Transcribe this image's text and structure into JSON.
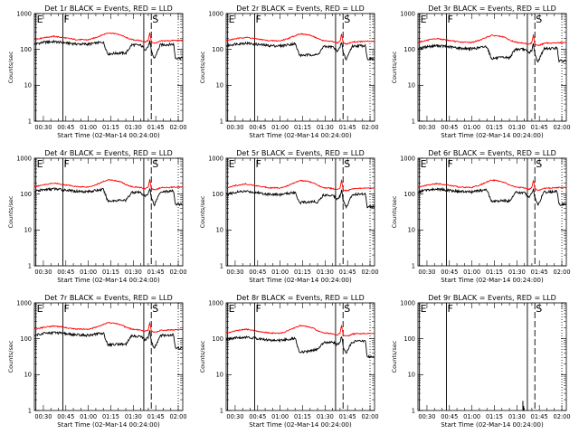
{
  "chart_data": {
    "type": "line",
    "layout": "3x3 grid of panels",
    "x_axis": {
      "label": "Start Time (02-Mar-14 00:24:00)",
      "range": [
        "00:24",
        "02:03"
      ],
      "tick_labels": [
        "00:30",
        "00:45",
        "01:00",
        "01:15",
        "01:30",
        "01:45",
        "02:00"
      ]
    },
    "y_axis": {
      "label": "Counts/sec",
      "scale": "log",
      "range": [
        1,
        1000
      ],
      "tick_labels": [
        "1",
        "10",
        "100",
        "1000"
      ]
    },
    "grid": false,
    "legend": "none",
    "colors": {
      "events": "#000000",
      "lld": "#ff0000"
    },
    "time_markers": [
      {
        "time": "00:25",
        "label": "E",
        "style": "solid"
      },
      {
        "time": "00:43",
        "label": "F",
        "style": "solid"
      },
      {
        "time": "01:37",
        "label": "",
        "style": "solid"
      },
      {
        "time": "01:42",
        "label": "S",
        "style": "dashed"
      },
      {
        "time": "02:00",
        "label": "",
        "style": "dotted"
      }
    ],
    "time_knots": [
      "00:24",
      "00:30",
      "00:37",
      "00:45",
      "00:52",
      "01:00",
      "01:05",
      "01:10",
      "01:13",
      "01:18",
      "01:22",
      "01:25",
      "01:29",
      "01:35",
      "01:38",
      "01:40",
      "01:41",
      "01:42",
      "01:44",
      "01:46",
      "01:48",
      "01:50",
      "01:55",
      "01:57",
      "01:58",
      "02:03"
    ],
    "panels": [
      {
        "title": "Det 1r BLACK = Events, RED = LLD",
        "series": [
          {
            "name": "Events",
            "values": [
              140,
              158,
              165,
              152,
              142,
              140,
              150,
              160,
              75,
              78,
              80,
              78,
              135,
              130,
              100,
              120,
              170,
              90,
              55,
              85,
              135,
              135,
              138,
              140,
              58,
              57
            ]
          },
          {
            "name": "LLD",
            "values": [
              188,
              212,
              232,
              208,
              188,
              185,
              215,
              260,
              290,
              275,
              250,
              215,
              188,
              175,
              160,
              178,
              290,
              165,
              150,
              155,
              170,
              173,
              176,
              178,
              178,
              178
            ]
          }
        ]
      },
      {
        "title": "Det 2r BLACK = Events, RED = LLD",
        "series": [
          {
            "name": "Events",
            "values": [
              125,
              142,
              150,
              138,
              128,
              125,
              135,
              145,
              68,
              70,
              72,
              70,
              120,
              118,
              92,
              110,
              160,
              85,
              52,
              80,
              122,
              125,
              128,
              130,
              55,
              54
            ]
          },
          {
            "name": "LLD",
            "values": [
              175,
              198,
              218,
              195,
              176,
              173,
              200,
              242,
              272,
              258,
              235,
              200,
              176,
              165,
              150,
              168,
              275,
              155,
              142,
              147,
              160,
              163,
              166,
              168,
              168,
              168
            ]
          }
        ]
      },
      {
        "title": "Det 3r BLACK = Events, RED = LLD",
        "series": [
          {
            "name": "Events",
            "values": [
              105,
              120,
              128,
              118,
              108,
              105,
              112,
              122,
              56,
              58,
              60,
              58,
              102,
              100,
              80,
              96,
              142,
              72,
              45,
              68,
              104,
              106,
              108,
              110,
              48,
              47
            ]
          },
          {
            "name": "LLD",
            "values": [
              158,
              180,
              200,
              178,
              160,
              157,
              180,
              220,
              248,
              236,
              215,
              183,
              160,
              150,
              138,
              155,
              255,
              142,
              130,
              135,
              147,
              150,
              152,
              154,
              154,
              154
            ]
          }
        ]
      },
      {
        "title": "Det 4r BLACK = Events, RED = LLD",
        "series": [
          {
            "name": "Events",
            "values": [
              118,
              132,
              140,
              130,
              120,
              118,
              126,
              136,
              64,
              66,
              68,
              66,
              114,
              110,
              86,
              104,
              150,
              80,
              50,
              76,
              116,
              118,
              120,
              122,
              52,
              51
            ]
          },
          {
            "name": "LLD",
            "values": [
              160,
              182,
              202,
              180,
              162,
              158,
              182,
              222,
              250,
              238,
              216,
              185,
              162,
              152,
              140,
              157,
              258,
              145,
              132,
              137,
              150,
              152,
              155,
              157,
              157,
              157
            ]
          }
        ]
      },
      {
        "title": "Det 5r BLACK = Events, RED = LLD",
        "series": [
          {
            "name": "Events",
            "values": [
              98,
              112,
              120,
              110,
              100,
              97,
              104,
              114,
              58,
              60,
              62,
              60,
              95,
              93,
              75,
              90,
              132,
              68,
              42,
              64,
              97,
              99,
              101,
              103,
              45,
              44
            ]
          },
          {
            "name": "LLD",
            "values": [
              150,
              172,
              192,
              170,
              152,
              148,
              172,
              212,
              240,
              228,
              206,
              175,
              152,
              143,
              131,
              148,
              245,
              136,
              124,
              128,
              140,
              143,
              145,
              147,
              147,
              147
            ]
          }
        ]
      },
      {
        "title": "Det 6r BLACK = Events, RED = LLD",
        "series": [
          {
            "name": "Events",
            "values": [
              115,
              130,
              138,
              128,
              118,
              115,
              123,
              133,
              62,
              64,
              66,
              64,
              111,
              108,
              84,
              102,
              147,
              78,
              49,
              74,
              113,
              115,
              117,
              119,
              51,
              50
            ]
          },
          {
            "name": "LLD",
            "values": [
              155,
              177,
              197,
              175,
              157,
              153,
              177,
              217,
              245,
              233,
              211,
              180,
              157,
              148,
              136,
              152,
              250,
              140,
              128,
              133,
              145,
              147,
              150,
              152,
              152,
              152
            ]
          }
        ]
      },
      {
        "title": "Det 7r BLACK = Events, RED = LLD",
        "series": [
          {
            "name": "Events",
            "values": [
              125,
              142,
              150,
              138,
              128,
              125,
              135,
              145,
              68,
              70,
              72,
              70,
              120,
              118,
              92,
              110,
              160,
              85,
              52,
              80,
              122,
              125,
              128,
              130,
              55,
              54
            ]
          },
          {
            "name": "LLD",
            "values": [
              185,
              208,
              228,
              205,
              186,
              183,
              210,
              252,
              282,
              268,
              245,
              210,
              186,
              175,
              160,
              178,
              285,
              165,
              152,
              157,
              170,
              173,
              176,
              178,
              178,
              178
            ]
          }
        ]
      },
      {
        "title": "Det 8r BLACK = Events, RED = LLD",
        "series": [
          {
            "name": "Events",
            "values": [
              95,
              105,
              112,
              102,
              92,
              90,
              96,
              104,
              42,
              44,
              48,
              50,
              80,
              82,
              68,
              82,
              120,
              62,
              38,
              58,
              82,
              84,
              86,
              88,
              32,
              30
            ]
          },
          {
            "name": "LLD",
            "values": [
              145,
              165,
              185,
              163,
              146,
              142,
              165,
              205,
              232,
              220,
              198,
              168,
              146,
              138,
              126,
              142,
              238,
              130,
              118,
              122,
              134,
              137,
              139,
              141,
              141,
              141
            ]
          }
        ]
      },
      {
        "title": "Det 9r BLACK = Events, RED = LLD",
        "series": [
          {
            "name": "Events",
            "values": [],
            "spikes": [
              {
                "time": "01:34",
                "value": 1.85
              },
              {
                "time": "01:34.5",
                "value": 1.35
              }
            ]
          },
          {
            "name": "LLD",
            "values": []
          }
        ]
      }
    ]
  }
}
